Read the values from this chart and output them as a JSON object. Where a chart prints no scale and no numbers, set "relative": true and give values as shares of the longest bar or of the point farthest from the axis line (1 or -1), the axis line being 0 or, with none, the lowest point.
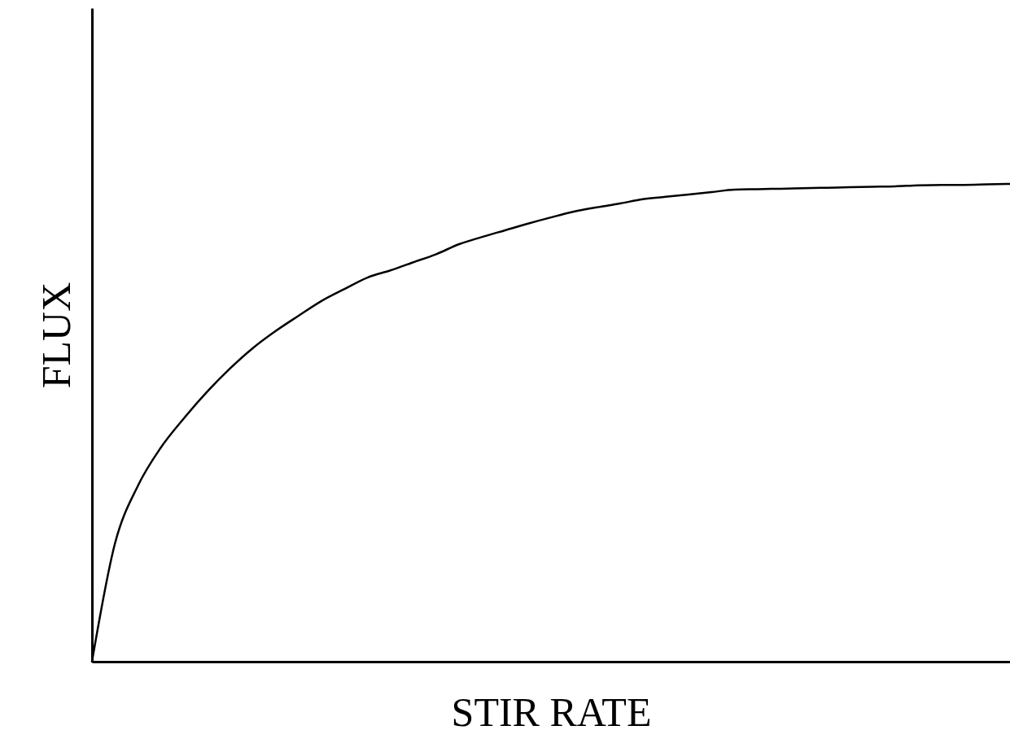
{
  "chart_data": {
    "type": "line",
    "relative": true,
    "xlabel": "STIR RATE",
    "ylabel": "FLUX",
    "marker": "none",
    "line_style": "solid",
    "grid": false,
    "tick_labels": false,
    "categories": [
      null,
      null,
      null,
      null,
      null,
      null,
      null,
      null,
      null,
      null,
      null,
      null,
      null,
      null,
      null,
      null,
      null,
      null,
      null,
      null,
      null,
      null,
      null,
      null,
      null,
      null,
      null,
      null,
      null,
      null,
      null,
      null,
      null,
      null,
      null,
      null,
      null,
      null,
      null,
      null,
      null
    ],
    "series": [
      {
        "color": "#000000",
        "values": [
          0,
          0.247,
          0.368,
          0.448,
          0.509,
          0.564,
          0.613,
          0.656,
          0.692,
          0.724,
          0.755,
          0.78,
          0.804,
          0.819,
          0.836,
          0.853,
          0.874,
          0.889,
          0.903,
          0.917,
          0.93,
          0.942,
          0.951,
          0.959,
          0.968,
          0.973,
          0.978,
          0.983,
          0.988,
          0.989,
          0.99,
          0.991,
          0.992,
          0.993,
          0.994,
          0.995,
          0.997,
          0.998,
          0.998,
          0.999,
          1
        ]
      }
    ]
  }
}
